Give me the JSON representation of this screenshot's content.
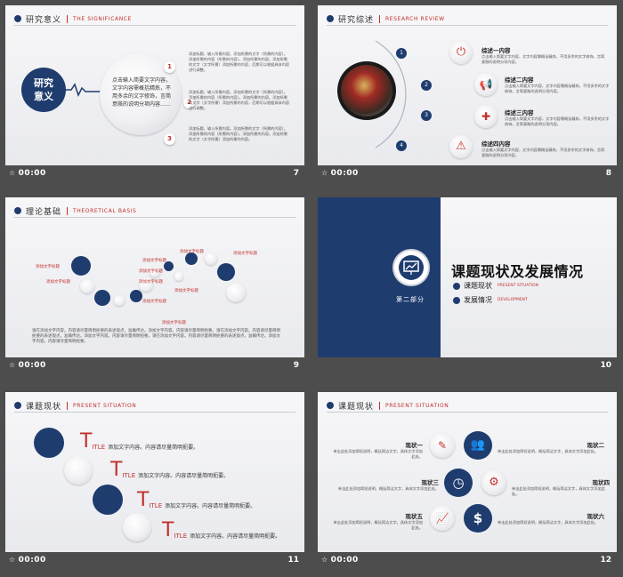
{
  "slides": [
    {
      "number": "7",
      "time": "00:00",
      "header": {
        "cn": "研究意义",
        "en": "THE SIGNIFICANCE"
      },
      "main_label": "研究\n意义",
      "center_text": "点击输入简要文字内容，文字内容需概括精炼，不用多余的文字修饰，言简意赅的说明分项内容……",
      "items": [
        {
          "n": "1",
          "text": "添加标题，输入所需内容。添加所需的文字（所需的内容）。添加所需的内容（所需的内容）。添加所需的内容。添加所需的文字（文字所需）添加所需的内容，后期可以根据具体内容进行调整。"
        },
        {
          "n": "2",
          "text": "添加标题，输入所需内容。添加所需的文字（所需的内容）。添加所需的内容（所需的内容）。添加所需的内容。添加所需的文字（文字所需）添加所需的内容，后期可以根据具体内容进行调整。"
        },
        {
          "n": "3",
          "text": "添加标题，输入所需内容。添加所需的文字（所需的内容）。添加所需的内容（所需的内容）。添加所需的内容。添加所需的文字（文字所需）添加所需的内容。"
        }
      ]
    },
    {
      "number": "8",
      "time": "00:00",
      "header": {
        "cn": "研究综述",
        "en": "RESEARCH REVIEW"
      },
      "items": [
        {
          "n": "1",
          "title": "综述一内容",
          "text": "点击输入简要文字内容，文字内容需概括精炼，不用多余的文字修饰，言简意赅的说明分项内容。"
        },
        {
          "n": "2",
          "title": "综述二内容",
          "text": "点击输入简要文字内容，文字内容需概括精炼，不用多余的文字修饰，言简意赅的说明分项内容。"
        },
        {
          "n": "3",
          "title": "综述三内容",
          "text": "点击输入简要文字内容，文字内容需概括精炼，不用多余的文字修饰，言简意赅的说明分项内容。"
        },
        {
          "n": "4",
          "title": "综述四内容",
          "text": "点击输入简要文字内容，文字内容需概括精炼，不用多余的文字修饰，言简意赅的说明分项内容。"
        }
      ]
    },
    {
      "number": "9",
      "time": "00:00",
      "header": {
        "cn": "理论基础",
        "en": "THEORETICAL BASIS"
      },
      "label": "添加文字标题",
      "paragraph": "请在添加文字内容。内容请尽量简明扼要的表述观点，准确传达。添加文字内容。内容请尽量简明扼要。请在添加文字内容。内容请尽量简明扼要的表述观点，准确传达。添加文字内容。内容请尽量简明扼要。请在添加文字内容。内容请尽量简明扼要的表述观点，准确传达。添加文字内容。内容请尽量简明扼要。"
    },
    {
      "number": "10",
      "time": "",
      "part": "第二部分",
      "title": "课题现状及发展情况",
      "subs": [
        {
          "cn": "课题现状",
          "en": "PRESENT SITUATION"
        },
        {
          "cn": "发展情况",
          "en": "DEVELOPMENT"
        }
      ]
    },
    {
      "number": "11",
      "time": "00:00",
      "header": {
        "cn": "课题现状",
        "en": "PRESENT SITUATION"
      },
      "rows": [
        {
          "t": "T",
          "itle": "ITLE",
          "text": "添加文字内容。内容请尽量简明扼要。"
        },
        {
          "t": "T",
          "itle": "ITLE",
          "text": "添加文字内容。内容请尽量简明扼要。"
        },
        {
          "t": "T",
          "itle": "ITLE",
          "text": "添加文字内容。内容请尽量简明扼要。"
        },
        {
          "t": "T",
          "itle": "ITLE",
          "text": "添加文字内容。内容请尽量简明扼要。"
        }
      ]
    },
    {
      "number": "12",
      "time": "00:00",
      "header": {
        "cn": "课题现状",
        "en": "PRESENT SITUATION"
      },
      "left": [
        {
          "title": "现状一",
          "text": "单击此处添加简短说明，概括简洁文字，具体文字添加此处。"
        },
        {
          "title": "现状三",
          "text": "单击此处添加简短说明，概括简洁文字，具体文字添加此处。"
        },
        {
          "title": "现状五",
          "text": "单击此处添加简短说明，概括简洁文字，具体文字添加此处。"
        }
      ],
      "right": [
        {
          "title": "现状二",
          "text": "单击此处添加简短说明，概括简洁文字，具体文字添加此处。"
        },
        {
          "title": "现状四",
          "text": "单击此处添加简短说明，概括简洁文字，具体文字添加此处。"
        },
        {
          "title": "现状六",
          "text": "单击此处添加简短说明，概括简洁文字，具体文字添加此处。"
        }
      ]
    }
  ],
  "colors": {
    "navy": "#1f3c6e",
    "red": "#c0302b",
    "bg": "#4d4d4d"
  }
}
